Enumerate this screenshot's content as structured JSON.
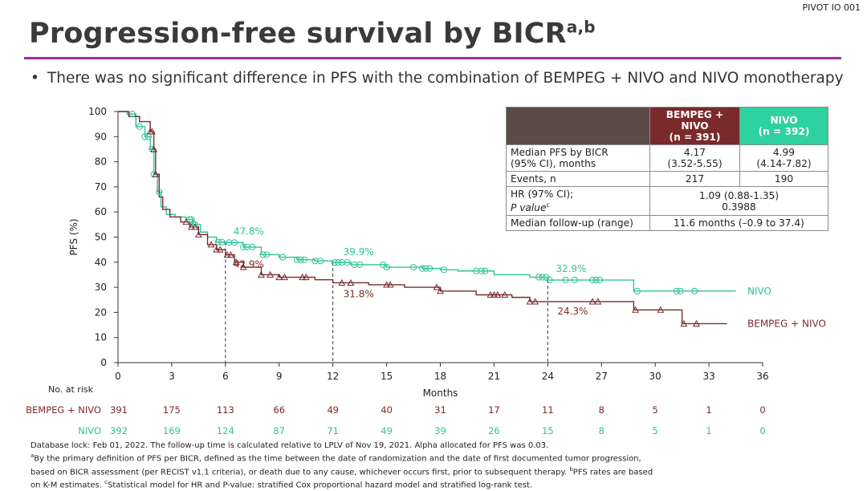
{
  "slide_tag": "PIVOT IO 001",
  "title": "Progression-free survival by BICR",
  "title_sup": "a,b",
  "bullet": "There was no significant difference in PFS with the combination of BEMPEG + NIVO and NIVO monotherapy",
  "colors": {
    "bempeg": "#7a2a2a",
    "nivo": "#2ec49a",
    "rule": "#9b2f9b"
  },
  "table": {
    "head_bempeg_1": "BEMPEG + NIVO",
    "head_bempeg_2": "(n = 391)",
    "head_nivo_1": "NIVO",
    "head_nivo_2": "(n = 392)",
    "row1_label_1": "Median PFS by BICR",
    "row1_label_2": "(95% CI), months",
    "row1_b_1": "4.17",
    "row1_b_2": "(3.52-5.55)",
    "row1_n_1": "4.99",
    "row1_n_2": "(4.14-7.82)",
    "row2_label": "Events, n",
    "row2_b": "217",
    "row2_n": "190",
    "row3_label_1": "HR (97% CI);",
    "row3_label_2": "P value",
    "row3_label_sup": "c",
    "row3_val_1": "1.09 (0.88-1.35)",
    "row3_val_2": "0.3988",
    "row4_label": "Median follow-up (range)",
    "row4_val": "11.6 months (–0.9 to 37.4)"
  },
  "chart_data": {
    "type": "line",
    "xlabel": "Months",
    "ylabel": "PFS (%)",
    "xlim": [
      0,
      36
    ],
    "ylim": [
      0,
      100
    ],
    "xticks": [
      0,
      3,
      6,
      9,
      12,
      15,
      18,
      21,
      24,
      27,
      30,
      33,
      36
    ],
    "yticks": [
      0,
      10,
      20,
      30,
      40,
      50,
      60,
      70,
      80,
      90,
      100
    ],
    "landmarks": [
      6,
      12,
      24
    ],
    "series": [
      {
        "name": "NIVO",
        "key": "nivo",
        "points": [
          [
            0,
            100
          ],
          [
            0.5,
            99
          ],
          [
            1.0,
            94
          ],
          [
            1.5,
            90
          ],
          [
            1.8,
            85
          ],
          [
            2.0,
            75
          ],
          [
            2.2,
            68
          ],
          [
            2.4,
            62
          ],
          [
            2.7,
            59
          ],
          [
            3.2,
            58
          ],
          [
            3.8,
            57
          ],
          [
            4.2,
            55
          ],
          [
            4.6,
            52
          ],
          [
            5.0,
            50
          ],
          [
            5.5,
            48
          ],
          [
            6.0,
            47.8
          ],
          [
            7,
            46
          ],
          [
            8,
            43
          ],
          [
            9,
            42
          ],
          [
            10,
            41
          ],
          [
            11,
            40.5
          ],
          [
            12,
            39.9
          ],
          [
            13,
            39
          ],
          [
            15,
            38
          ],
          [
            17,
            37.5
          ],
          [
            18,
            37
          ],
          [
            19,
            36.5
          ],
          [
            21,
            35
          ],
          [
            23,
            34
          ],
          [
            24,
            32.9
          ],
          [
            28.8,
            32.9
          ],
          [
            28.8,
            28.5
          ],
          [
            34.5,
            28.5
          ]
        ],
        "label_pts": [
          {
            "x": 6,
            "y": 47.8,
            "text": "47.8%"
          },
          {
            "x": 12,
            "y": 39.9,
            "text": "39.9%"
          },
          {
            "x": 24,
            "y": 32.9,
            "text": "32.9%"
          }
        ],
        "end_label": "NIVO"
      },
      {
        "name": "BEMPEG + NIVO",
        "key": "bempeg",
        "points": [
          [
            0,
            100
          ],
          [
            0.6,
            98
          ],
          [
            1.2,
            96
          ],
          [
            1.8,
            92
          ],
          [
            2.0,
            85
          ],
          [
            2.1,
            75
          ],
          [
            2.3,
            66
          ],
          [
            2.5,
            61
          ],
          [
            2.9,
            58
          ],
          [
            3.5,
            56
          ],
          [
            4.0,
            54
          ],
          [
            4.5,
            51
          ],
          [
            5.0,
            47
          ],
          [
            5.5,
            45
          ],
          [
            6.0,
            42.9
          ],
          [
            6.5,
            40
          ],
          [
            7,
            38
          ],
          [
            8,
            35
          ],
          [
            9,
            34
          ],
          [
            10,
            34
          ],
          [
            11,
            33
          ],
          [
            12,
            31.8
          ],
          [
            14,
            31
          ],
          [
            16,
            30
          ],
          [
            18,
            28.5
          ],
          [
            20,
            27
          ],
          [
            22,
            26
          ],
          [
            23,
            24.3
          ],
          [
            24,
            24.3
          ],
          [
            28.2,
            24.3
          ],
          [
            28.8,
            21
          ],
          [
            31.5,
            21
          ],
          [
            31.5,
            15.5
          ],
          [
            34,
            15.5
          ]
        ],
        "label_pts": [
          {
            "x": 6,
            "y": 42.9,
            "text": "42.9%"
          },
          {
            "x": 12,
            "y": 31.8,
            "text": "31.8%"
          },
          {
            "x": 24,
            "y": 24.3,
            "text": "24.3%"
          }
        ],
        "end_label": "BEMPEG + NIVO"
      }
    ],
    "censor_nivo": [
      0.8,
      1.2,
      1.5,
      1.7,
      1.9,
      2.0,
      2.3,
      4.0,
      4.1,
      4.2,
      4.3,
      5.6,
      5.8,
      6.2,
      6.5,
      7.0,
      7.2,
      7.5,
      8.1,
      8.3,
      9.2,
      10.0,
      10.2,
      10.4,
      11.0,
      11.3,
      12.1,
      12.3,
      12.5,
      12.8,
      13.2,
      13.5,
      14.8,
      15.0,
      16.5,
      17.0,
      17.2,
      17.4,
      18.2,
      20.0,
      20.3,
      20.5,
      23.5,
      23.7,
      23.9,
      24.1,
      25.0,
      25.5,
      26.5,
      26.7,
      26.9,
      29.0,
      31.2,
      31.4,
      32.2
    ],
    "censor_bempeg": [
      1.8,
      1.9,
      2.0,
      2.1,
      3.8,
      4.1,
      4.3,
      4.5,
      5.2,
      5.5,
      5.7,
      6.1,
      6.3,
      6.6,
      7.0,
      8.0,
      8.5,
      9.0,
      9.3,
      10.3,
      10.5,
      12.5,
      13.0,
      15.0,
      15.2,
      17.8,
      18.0,
      20.8,
      21.0,
      21.2,
      21.6,
      23.0,
      23.3,
      26.5,
      26.8,
      28.9,
      30.3,
      31.6,
      32.3
    ],
    "risk_label": "No. at risk",
    "risk_times": [
      0,
      3,
      6,
      9,
      12,
      15,
      18,
      21,
      24,
      27,
      30,
      33,
      36
    ],
    "risk": [
      {
        "name": "BEMPEG + NIVO",
        "key": "bempeg",
        "counts": [
          391,
          175,
          113,
          66,
          49,
          40,
          31,
          17,
          11,
          8,
          5,
          1,
          0
        ]
      },
      {
        "name": "NIVO",
        "key": "nivo",
        "counts": [
          392,
          169,
          124,
          87,
          71,
          49,
          39,
          26,
          15,
          8,
          5,
          1,
          0
        ]
      }
    ]
  },
  "footnote": {
    "line1": "Database lock: Feb 01, 2022. The follow-up time is calculated relative to LPLV of Nov 19, 2021. Alpha allocated for PFS was 0.03.",
    "line2": "By the primary definition of PFS per BICR, defined as the time between the date of randomization and the date of first documented tumor progression,",
    "line3": "based on BICR assessment (per RECIST v1.1 criteria), or death due to any cause, whichever occurs first, prior to subsequent therapy.",
    "line3b": "PFS rates are based",
    "line4a": "on K-M estimates.",
    "line4b": "Statistical model for HR and P-value: stratified Cox proportional hazard model and stratified log-rank test.",
    "sup_a": "a",
    "sup_b": "b",
    "sup_c": "c"
  }
}
